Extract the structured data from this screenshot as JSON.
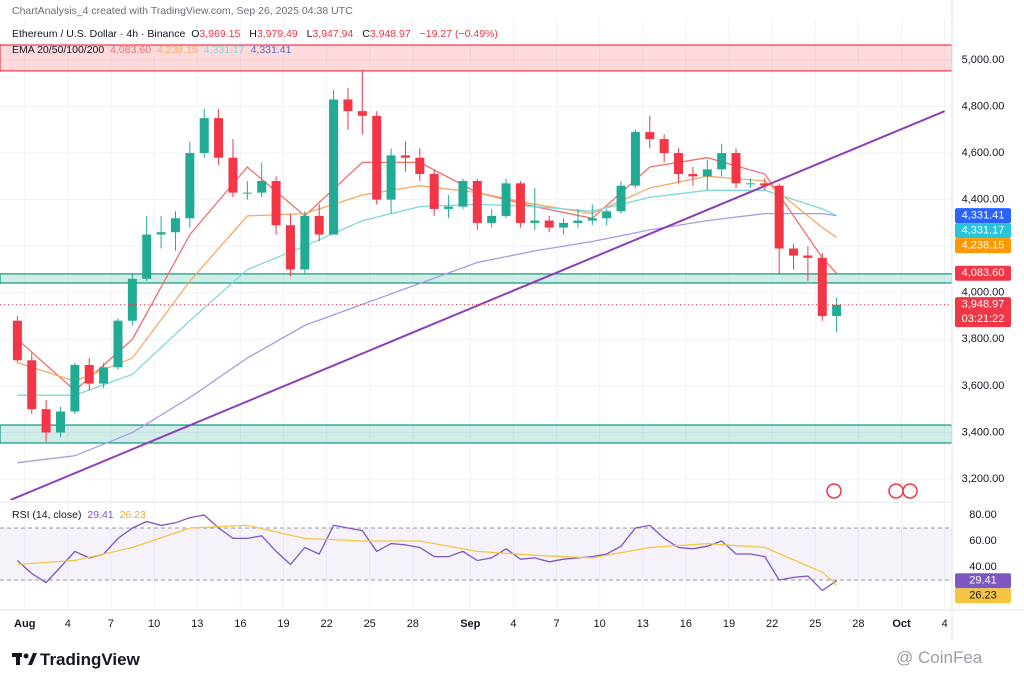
{
  "header": {
    "credit": "ChartAnalysis_4 created with TradingView.com, Sep 26, 2025 04:38 UTC",
    "title": "Ethereum / U.S. Dollar · 4h · Binance",
    "ohlc_labels": [
      "O",
      "H",
      "L",
      "C"
    ],
    "ohlc_values": [
      "3,969.15",
      "3,979.49",
      "3,947.94",
      "3,948.97"
    ],
    "change": "−19.27 (−0.49%)",
    "ema_label": "EMA 20/50/100/200"
  },
  "footer": {
    "logo": "TradingView",
    "watermark": "@ CoinFea"
  },
  "chart_data": [
    {
      "type": "candlestick",
      "x": [
        "2025-07-31",
        "2025-08-01",
        "2025-08-02",
        "2025-08-03",
        "2025-08-04",
        "2025-08-05",
        "2025-08-06",
        "2025-08-07",
        "2025-08-08",
        "2025-08-09",
        "2025-08-10",
        "2025-08-11",
        "2025-08-12",
        "2025-08-13",
        "2025-08-14",
        "2025-08-15",
        "2025-08-16",
        "2025-08-17",
        "2025-08-18",
        "2025-08-19",
        "2025-08-20",
        "2025-08-21",
        "2025-08-22",
        "2025-08-23",
        "2025-08-24",
        "2025-08-25",
        "2025-08-26",
        "2025-08-27",
        "2025-08-28",
        "2025-08-29",
        "2025-08-30",
        "2025-08-31",
        "2025-09-01",
        "2025-09-02",
        "2025-09-03",
        "2025-09-04",
        "2025-09-05",
        "2025-09-06",
        "2025-09-07",
        "2025-09-08",
        "2025-09-09",
        "2025-09-10",
        "2025-09-11",
        "2025-09-12",
        "2025-09-13",
        "2025-09-14",
        "2025-09-15",
        "2025-09-16",
        "2025-09-17",
        "2025-09-18",
        "2025-09-19",
        "2025-09-20",
        "2025-09-21",
        "2025-09-22",
        "2025-09-23",
        "2025-09-24",
        "2025-09-25",
        "2025-09-26"
      ],
      "open": [
        3880,
        3710,
        3500,
        3400,
        3490,
        3690,
        3610,
        3680,
        3880,
        4060,
        4250,
        4260,
        4320,
        4600,
        4750,
        4580,
        4430,
        4430,
        4480,
        4290,
        4100,
        4330,
        4250,
        4830,
        4780,
        4760,
        4400,
        4590,
        4580,
        4510,
        4360,
        4370,
        4480,
        4300,
        4330,
        4470,
        4300,
        4310,
        4280,
        4300,
        4310,
        4320,
        4350,
        4460,
        4690,
        4660,
        4600,
        4510,
        4500,
        4530,
        4600,
        4470,
        4470,
        4460,
        4190,
        4160,
        4150,
        3900
      ],
      "high": [
        3900,
        3740,
        3540,
        3510,
        3700,
        3720,
        3700,
        3890,
        4080,
        4330,
        4330,
        4350,
        4650,
        4790,
        4790,
        4660,
        4480,
        4560,
        4500,
        4340,
        4350,
        4380,
        4870,
        4880,
        4950,
        4780,
        4620,
        4650,
        4620,
        4530,
        4420,
        4490,
        4490,
        4360,
        4490,
        4480,
        4450,
        4330,
        4320,
        4360,
        4380,
        4360,
        4480,
        4700,
        4760,
        4680,
        4620,
        4540,
        4570,
        4640,
        4620,
        4490,
        4490,
        4470,
        4210,
        4200,
        4170,
        3980
      ],
      "low": [
        3700,
        3480,
        3360,
        3380,
        3480,
        3580,
        3590,
        3670,
        3860,
        4050,
        4190,
        4180,
        4280,
        4580,
        4550,
        4410,
        4400,
        4410,
        4250,
        4070,
        4080,
        4220,
        4250,
        4700,
        4680,
        4380,
        4340,
        4520,
        4480,
        4330,
        4320,
        4360,
        4270,
        4280,
        4320,
        4280,
        4270,
        4260,
        4250,
        4280,
        4290,
        4290,
        4340,
        4450,
        4620,
        4560,
        4470,
        4460,
        4440,
        4500,
        4450,
        4450,
        4440,
        4080,
        4100,
        4050,
        3880,
        3830
      ],
      "close": [
        3710,
        3500,
        3400,
        3490,
        3690,
        3610,
        3680,
        3880,
        4060,
        4250,
        4260,
        4320,
        4600,
        4750,
        4580,
        4430,
        4430,
        4480,
        4290,
        4100,
        4330,
        4250,
        4830,
        4780,
        4760,
        4400,
        4590,
        4580,
        4510,
        4360,
        4370,
        4480,
        4300,
        4330,
        4470,
        4300,
        4310,
        4280,
        4300,
        4310,
        4320,
        4350,
        4460,
        4690,
        4660,
        4600,
        4510,
        4500,
        4530,
        4600,
        4470,
        4470,
        4460,
        4190,
        4160,
        4150,
        3900,
        3948.97
      ],
      "up_color": "#22ab94",
      "down_color": "#f23645",
      "xlim": [
        "2025-07-30",
        "2025-10-05"
      ],
      "ylim": [
        3110,
        5180
      ],
      "yticks": [
        {
          "value": 3200,
          "label": "3,200.00"
        },
        {
          "value": 3400,
          "label": "3,400.00"
        },
        {
          "value": 3600,
          "label": "3,600.00"
        },
        {
          "value": 3800,
          "label": "3,800.00"
        },
        {
          "value": 4000,
          "label": "4,000.00"
        },
        {
          "value": 4200,
          "label": "4,200.00"
        },
        {
          "value": 4400,
          "label": "4,400.00"
        },
        {
          "value": 4600,
          "label": "4,600.00"
        },
        {
          "value": 4800,
          "label": "4,800.00"
        },
        {
          "value": 5000,
          "label": "5,000.00"
        }
      ],
      "grid": true,
      "ema": {
        "x": [
          "2025-07-31",
          "2025-08-04",
          "2025-08-08",
          "2025-08-12",
          "2025-08-16",
          "2025-08-20",
          "2025-08-24",
          "2025-08-28",
          "2025-09-01",
          "2025-09-05",
          "2025-09-09",
          "2025-09-13",
          "2025-09-17",
          "2025-09-21",
          "2025-09-25",
          "2025-09-26"
        ],
        "series": [
          {
            "color": "#ef6f6c",
            "values": [
              3800,
              3580,
              3800,
              4250,
              4540,
              4330,
              4560,
              4560,
              4430,
              4370,
              4320,
              4540,
              4580,
              4510,
              4150,
              4083.6
            ]
          },
          {
            "color": "#f6a863",
            "values": [
              3700,
              3620,
              3720,
              4050,
              4330,
              4340,
              4420,
              4460,
              4430,
              4380,
              4340,
              4450,
              4500,
              4480,
              4280,
              4238.15
            ]
          },
          {
            "color": "#7fd8d8",
            "values": [
              3560,
              3560,
              3650,
              3880,
              4100,
              4200,
              4310,
              4370,
              4380,
              4370,
              4350,
              4410,
              4440,
              4440,
              4360,
              4331.17
            ]
          },
          {
            "color": "#a59be6",
            "values": [
              3270,
              3300,
              3400,
              3550,
              3720,
              3860,
              3950,
              4040,
              4130,
              4180,
              4220,
              4270,
              4310,
              4340,
              4340,
              4331.41
            ]
          }
        ]
      },
      "zones": [
        {
          "from": 4953,
          "to": 5064,
          "color": "#f23645"
        },
        {
          "from": 4042,
          "to": 4081,
          "color": "#089981"
        },
        {
          "from": 3355,
          "to": 3432,
          "color": "#089981"
        }
      ],
      "trendline": {
        "x": [
          "2025-07-31",
          "2025-10-04"
        ],
        "values": [
          3110,
          4780
        ],
        "color": "#8e3fb8"
      },
      "price_labels": [
        {
          "value": 4331.41,
          "label": "4,331.41",
          "color": "#2962ff"
        },
        {
          "value": 4331.17,
          "label": "4,331.17",
          "color": "#26c6da"
        },
        {
          "value": 4238.15,
          "label": "4,238.15",
          "color": "#ff9800"
        },
        {
          "value": 4083.6,
          "label": "4,083.60",
          "color": "#f23645"
        },
        {
          "value": 3948.97,
          "label": "3,948.97",
          "color": "#f23645",
          "countdown": "03:21:22"
        }
      ]
    },
    {
      "type": "line",
      "title": "RSI (14, close)",
      "x": [
        "2025-07-31",
        "2025-08-01",
        "2025-08-02",
        "2025-08-03",
        "2025-08-04",
        "2025-08-05",
        "2025-08-06",
        "2025-08-07",
        "2025-08-08",
        "2025-08-09",
        "2025-08-10",
        "2025-08-11",
        "2025-08-12",
        "2025-08-13",
        "2025-08-14",
        "2025-08-15",
        "2025-08-16",
        "2025-08-17",
        "2025-08-18",
        "2025-08-19",
        "2025-08-20",
        "2025-08-21",
        "2025-08-22",
        "2025-08-23",
        "2025-08-24",
        "2025-08-25",
        "2025-08-26",
        "2025-08-27",
        "2025-08-28",
        "2025-08-29",
        "2025-08-30",
        "2025-08-31",
        "2025-09-01",
        "2025-09-02",
        "2025-09-03",
        "2025-09-04",
        "2025-09-05",
        "2025-09-06",
        "2025-09-07",
        "2025-09-08",
        "2025-09-09",
        "2025-09-10",
        "2025-09-11",
        "2025-09-12",
        "2025-09-13",
        "2025-09-14",
        "2025-09-15",
        "2025-09-16",
        "2025-09-17",
        "2025-09-18",
        "2025-09-19",
        "2025-09-20",
        "2025-09-21",
        "2025-09-22",
        "2025-09-23",
        "2025-09-24",
        "2025-09-25",
        "2025-09-26"
      ],
      "series": [
        {
          "color": "#7e57c2",
          "values": [
            45,
            35,
            28,
            40,
            52,
            47,
            50,
            62,
            70,
            75,
            72,
            74,
            78,
            80,
            70,
            62,
            62,
            64,
            52,
            42,
            55,
            50,
            72,
            70,
            68,
            52,
            58,
            57,
            55,
            48,
            48,
            52,
            45,
            47,
            54,
            46,
            47,
            44,
            46,
            47,
            48,
            50,
            56,
            70,
            72,
            62,
            55,
            54,
            56,
            60,
            50,
            50,
            48,
            30,
            32,
            33,
            22,
            29.41
          ]
        },
        {
          "color": "#f5c542",
          "x": [
            "2025-07-31",
            "2025-08-04",
            "2025-08-08",
            "2025-08-12",
            "2025-08-16",
            "2025-08-20",
            "2025-08-24",
            "2025-08-28",
            "2025-09-01",
            "2025-09-05",
            "2025-09-09",
            "2025-09-13",
            "2025-09-17",
            "2025-09-21",
            "2025-09-25",
            "2025-09-26"
          ],
          "values": [
            42,
            45,
            55,
            70,
            72,
            62,
            60,
            60,
            52,
            49,
            47,
            55,
            58,
            55,
            36,
            26.23
          ]
        }
      ],
      "xlim": [
        "2025-07-30",
        "2025-10-05"
      ],
      "ylim": [
        8.5,
        87.7
      ],
      "yticks": [
        {
          "value": 40,
          "label": "40.00"
        },
        {
          "value": 60,
          "label": "60.00"
        },
        {
          "value": 80,
          "label": "80.00"
        }
      ],
      "band": [
        30,
        70
      ],
      "badges": [
        {
          "value": 29.41,
          "label": "29.41",
          "color": "#7e57c2"
        },
        {
          "value": 26.23,
          "label": "26.23",
          "color": "#f5c542"
        }
      ],
      "xticks": [
        {
          "value": "2025-08-01",
          "label": "Aug"
        },
        {
          "value": "2025-08-04",
          "label": "4"
        },
        {
          "value": "2025-08-07",
          "label": "7"
        },
        {
          "value": "2025-08-10",
          "label": "10"
        },
        {
          "value": "2025-08-13",
          "label": "13"
        },
        {
          "value": "2025-08-16",
          "label": "16"
        },
        {
          "value": "2025-08-19",
          "label": "19"
        },
        {
          "value": "2025-08-22",
          "label": "22"
        },
        {
          "value": "2025-08-25",
          "label": "25"
        },
        {
          "value": "2025-08-28",
          "label": "28"
        },
        {
          "value": "2025-09-01",
          "label": "Sep"
        },
        {
          "value": "2025-09-04",
          "label": "4"
        },
        {
          "value": "2025-09-07",
          "label": "7"
        },
        {
          "value": "2025-09-10",
          "label": "10"
        },
        {
          "value": "2025-09-13",
          "label": "13"
        },
        {
          "value": "2025-09-16",
          "label": "16"
        },
        {
          "value": "2025-09-19",
          "label": "19"
        },
        {
          "value": "2025-09-22",
          "label": "22"
        },
        {
          "value": "2025-09-25",
          "label": "25"
        },
        {
          "value": "2025-09-28",
          "label": "28"
        },
        {
          "value": "2025-10-01",
          "label": "Oct"
        },
        {
          "value": "2025-10-04",
          "label": "4"
        }
      ]
    }
  ]
}
